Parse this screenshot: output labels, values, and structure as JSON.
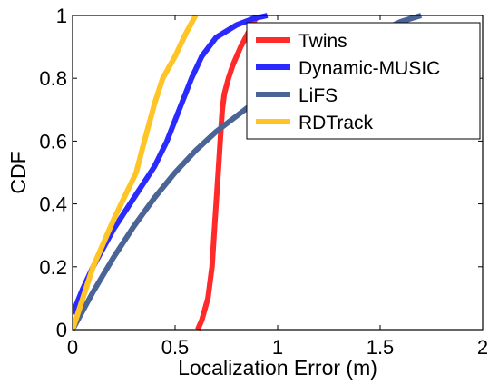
{
  "chart_data": {
    "type": "line",
    "title": "",
    "xlabel": "Localization Error (m)",
    "ylabel": "CDF",
    "xlim": [
      0,
      2
    ],
    "ylim": [
      0,
      1
    ],
    "xticks": [
      0,
      0.5,
      1,
      1.5,
      2
    ],
    "xtick_labels": [
      "0",
      "0.5",
      "1",
      "1.5",
      "2"
    ],
    "yticks": [
      0,
      0.2,
      0.4,
      0.6,
      0.8,
      1
    ],
    "ytick_labels": [
      "0",
      "0.2",
      "0.4",
      "0.6",
      "0.8",
      "1"
    ],
    "grid": false,
    "legend_position": "top-right",
    "series": [
      {
        "name": "Twins",
        "color": "#ff2a2a",
        "x": [
          0.61,
          0.63,
          0.66,
          0.68,
          0.69,
          0.7,
          0.71,
          0.72,
          0.73,
          0.74,
          0.76,
          0.78,
          0.82,
          0.86,
          0.9
        ],
        "y": [
          0.0,
          0.03,
          0.1,
          0.2,
          0.3,
          0.4,
          0.5,
          0.6,
          0.7,
          0.75,
          0.8,
          0.84,
          0.9,
          0.95,
          1.0
        ]
      },
      {
        "name": "Dynamic-MUSIC",
        "color": "#2a2aff",
        "x": [
          0.0,
          0.05,
          0.1,
          0.2,
          0.3,
          0.4,
          0.46,
          0.52,
          0.58,
          0.63,
          0.7,
          0.8,
          0.88,
          0.95
        ],
        "y": [
          0.05,
          0.13,
          0.2,
          0.32,
          0.42,
          0.52,
          0.6,
          0.7,
          0.8,
          0.87,
          0.93,
          0.97,
          0.99,
          1.0
        ]
      },
      {
        "name": "LiFS",
        "color": "#4a6495",
        "x": [
          0.0,
          0.1,
          0.2,
          0.3,
          0.4,
          0.5,
          0.6,
          0.7,
          0.8,
          0.9,
          1.0,
          1.1,
          1.2,
          1.3,
          1.4,
          1.5,
          1.6,
          1.7
        ],
        "y": [
          0.0,
          0.12,
          0.23,
          0.33,
          0.42,
          0.5,
          0.57,
          0.63,
          0.68,
          0.73,
          0.78,
          0.82,
          0.86,
          0.89,
          0.92,
          0.95,
          0.98,
          1.0
        ]
      },
      {
        "name": "RDTrack",
        "color": "#ffc425",
        "x": [
          0.0,
          0.05,
          0.1,
          0.2,
          0.31,
          0.35,
          0.4,
          0.44,
          0.5,
          0.55,
          0.6
        ],
        "y": [
          0.0,
          0.1,
          0.2,
          0.35,
          0.5,
          0.6,
          0.72,
          0.8,
          0.87,
          0.94,
          1.0
        ]
      }
    ]
  }
}
